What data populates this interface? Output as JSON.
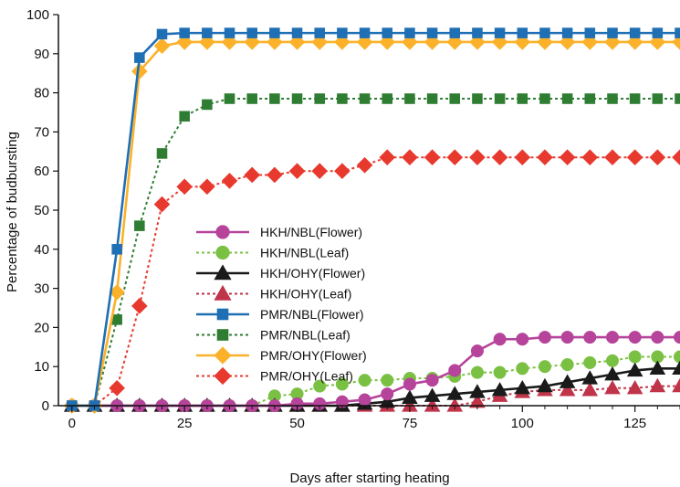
{
  "chart_data": {
    "type": "line",
    "title": "",
    "xlabel": "Days after starting heating",
    "ylabel": "Percentage of budbursting",
    "xlim": [
      -3,
      135
    ],
    "ylim": [
      0,
      100
    ],
    "xticks": [
      0,
      25,
      50,
      75,
      100,
      125
    ],
    "yticks": [
      0,
      10,
      20,
      30,
      40,
      50,
      60,
      70,
      80,
      90,
      100
    ],
    "grid": false,
    "legend": "center-left",
    "series": [
      {
        "name": "HKH/NBL(Flower)",
        "color": "#b5449a",
        "marker": "circle",
        "line": "solid",
        "x": [
          0,
          5,
          10,
          15,
          20,
          25,
          30,
          35,
          40,
          45,
          50,
          55,
          60,
          65,
          70,
          75,
          80,
          85,
          90,
          95,
          100,
          105,
          110,
          115,
          120,
          125,
          130,
          135
        ],
        "y": [
          0,
          0,
          0,
          0,
          0,
          0,
          0,
          0,
          0,
          0,
          0.5,
          0.5,
          1,
          1.5,
          3,
          5.5,
          6.5,
          9,
          14,
          17,
          17,
          17.5,
          17.5,
          17.5,
          17.5,
          17.5,
          17.5,
          17.5
        ]
      },
      {
        "name": "HKH/NBL(Leaf)",
        "color": "#7ac143",
        "marker": "circle",
        "line": "dotted",
        "x": [
          0,
          5,
          10,
          15,
          20,
          25,
          30,
          35,
          40,
          45,
          50,
          55,
          60,
          65,
          70,
          75,
          80,
          85,
          90,
          95,
          100,
          105,
          110,
          115,
          120,
          125,
          130,
          135
        ],
        "y": [
          0,
          0,
          0,
          0,
          0,
          0,
          0,
          0,
          0,
          2.5,
          3,
          5,
          5.5,
          6.5,
          6.5,
          7,
          7,
          7.5,
          8.5,
          8.5,
          9.5,
          10,
          10.5,
          11,
          11.5,
          12.5,
          12.5,
          12.5
        ]
      },
      {
        "name": "HKH/OHY(Flower)",
        "color": "#1a1a1a",
        "marker": "triangle",
        "line": "solid",
        "x": [
          0,
          5,
          10,
          15,
          20,
          25,
          30,
          35,
          40,
          45,
          50,
          55,
          60,
          65,
          70,
          75,
          80,
          85,
          90,
          95,
          100,
          105,
          110,
          115,
          120,
          125,
          130,
          135
        ],
        "y": [
          0,
          0,
          0,
          0,
          0,
          0,
          0,
          0,
          0,
          0,
          0,
          0,
          0,
          0.5,
          1,
          2,
          2.5,
          3,
          3.5,
          4,
          4.5,
          5,
          6,
          7,
          8,
          9,
          9.5,
          9.5
        ]
      },
      {
        "name": "HKH/OHY(Leaf)",
        "color": "#c0344a",
        "marker": "triangle",
        "line": "dotted",
        "x": [
          0,
          5,
          10,
          15,
          20,
          25,
          30,
          35,
          40,
          45,
          50,
          55,
          60,
          65,
          70,
          75,
          80,
          85,
          90,
          95,
          100,
          105,
          110,
          115,
          120,
          125,
          130,
          135
        ],
        "y": [
          0,
          0,
          0,
          0,
          0,
          0,
          0,
          0,
          0,
          0,
          0,
          0,
          0,
          0,
          0,
          0,
          0,
          0,
          1,
          2.5,
          3.5,
          4,
          4,
          4,
          4.5,
          4.5,
          5,
          5
        ]
      },
      {
        "name": "PMR/NBL(Flower)",
        "color": "#1f6fb4",
        "marker": "square",
        "line": "solid",
        "x": [
          0,
          5,
          10,
          15,
          20,
          25,
          30,
          35,
          40,
          45,
          50,
          55,
          60,
          65,
          70,
          75,
          80,
          85,
          90,
          95,
          100,
          105,
          110,
          115,
          120,
          125,
          130,
          135
        ],
        "y": [
          0,
          0,
          40,
          89,
          95,
          95.3,
          95.3,
          95.3,
          95.3,
          95.3,
          95.3,
          95.3,
          95.3,
          95.3,
          95.3,
          95.3,
          95.3,
          95.3,
          95.3,
          95.3,
          95.3,
          95.3,
          95.3,
          95.3,
          95.3,
          95.3,
          95.3,
          95.3
        ]
      },
      {
        "name": "PMR/NBL(Leaf)",
        "color": "#2e7d32",
        "marker": "square",
        "line": "dotted",
        "x": [
          0,
          5,
          10,
          15,
          20,
          25,
          30,
          35,
          40,
          45,
          50,
          55,
          60,
          65,
          70,
          75,
          80,
          85,
          90,
          95,
          100,
          105,
          110,
          115,
          120,
          125,
          130,
          135
        ],
        "y": [
          0,
          0,
          22,
          46,
          64.5,
          74,
          77,
          78.5,
          78.5,
          78.5,
          78.5,
          78.5,
          78.5,
          78.5,
          78.5,
          78.5,
          78.5,
          78.5,
          78.5,
          78.5,
          78.5,
          78.5,
          78.5,
          78.5,
          78.5,
          78.5,
          78.5,
          78.5
        ]
      },
      {
        "name": "PMR/OHY(Flower)",
        "color": "#fbb22a",
        "marker": "diamond",
        "line": "solid",
        "x": [
          0,
          5,
          10,
          15,
          20,
          25,
          30,
          35,
          40,
          45,
          50,
          55,
          60,
          65,
          70,
          75,
          80,
          85,
          90,
          95,
          100,
          105,
          110,
          115,
          120,
          125,
          130,
          135
        ],
        "y": [
          0,
          0,
          29,
          85.5,
          92,
          93,
          93,
          93,
          93,
          93,
          93,
          93,
          93,
          93,
          93,
          93,
          93,
          93,
          93,
          93,
          93,
          93,
          93,
          93,
          93,
          93,
          93,
          93
        ]
      },
      {
        "name": "PMR/OHY(Leaf)",
        "color": "#e8392e",
        "marker": "diamond",
        "line": "dotted",
        "x": [
          0,
          5,
          10,
          15,
          20,
          25,
          30,
          35,
          40,
          45,
          50,
          55,
          60,
          65,
          70,
          75,
          80,
          85,
          90,
          95,
          100,
          105,
          110,
          115,
          120,
          125,
          130,
          135
        ],
        "y": [
          0,
          0,
          4.5,
          25.5,
          51.5,
          56,
          56,
          57.5,
          59,
          59,
          60,
          60,
          60,
          61.5,
          63.5,
          63.5,
          63.5,
          63.5,
          63.5,
          63.5,
          63.5,
          63.5,
          63.5,
          63.5,
          63.5,
          63.5,
          63.5,
          63.5
        ]
      }
    ]
  }
}
